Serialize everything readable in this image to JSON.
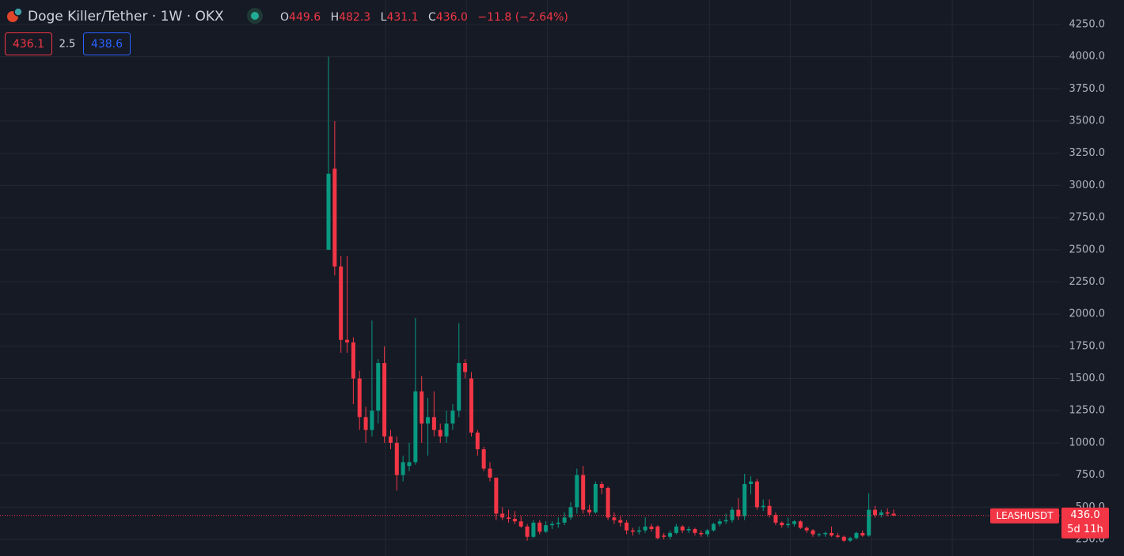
{
  "chart_data": {
    "type": "candlestick",
    "title": "Doge Killer/Tether · 1W · OKX",
    "header": {
      "o_label": "O",
      "o": "449.6",
      "h_label": "H",
      "h": "482.3",
      "l_label": "L",
      "l": "431.1",
      "c_label": "C",
      "c": "436.0",
      "change": "−11.8 (−2.64%)"
    },
    "boxes": {
      "bid": "436.1",
      "spread": "2.5",
      "ask": "438.6"
    },
    "price_tag": {
      "symbol": "LEASHUSDT",
      "price": "436.0",
      "countdown": "5d 11h"
    },
    "last_price": 436,
    "up_color": "#089981",
    "down_color": "#f23645",
    "open": [
      2500,
      3130,
      2370,
      1800,
      1780,
      1500,
      1200,
      1100,
      1250,
      1620,
      1050,
      1000,
      750,
      820,
      850,
      1400,
      1150,
      1200,
      1100,
      1050,
      1150,
      1250,
      1620,
      1500,
      1080,
      950,
      800,
      730,
      450,
      420,
      410,
      390,
      350,
      270,
      380,
      310,
      360,
      370,
      380,
      420,
      500,
      750,
      480,
      460,
      680,
      650,
      420,
      400,
      380,
      320,
      310,
      320,
      350,
      350,
      280,
      270,
      300,
      350,
      320,
      330,
      300,
      290,
      320,
      370,
      390,
      400,
      480,
      430,
      680,
      700,
      500,
      510,
      440,
      380,
      360,
      370,
      390,
      340,
      320,
      290,
      290,
      300,
      280,
      270,
      240,
      260,
      300,
      280,
      480,
      440,
      460,
      449.6
    ],
    "high": [
      4000,
      3500,
      2450,
      2450,
      1820,
      1560,
      1280,
      1950,
      1650,
      1750,
      1100,
      1050,
      900,
      1000,
      1970,
      1520,
      1350,
      1400,
      1150,
      1250,
      1300,
      1930,
      1650,
      1550,
      1100,
      970,
      850,
      730,
      500,
      480,
      470,
      430,
      370,
      400,
      400,
      390,
      390,
      420,
      460,
      540,
      800,
      820,
      520,
      700,
      700,
      660,
      460,
      430,
      400,
      340,
      350,
      420,
      370,
      360,
      300,
      320,
      370,
      360,
      350,
      340,
      320,
      330,
      380,
      410,
      450,
      500,
      570,
      760,
      740,
      720,
      560,
      560,
      460,
      390,
      420,
      400,
      400,
      350,
      330,
      300,
      310,
      350,
      300,
      280,
      270,
      310,
      320,
      610,
      510,
      480,
      490,
      482.3
    ],
    "low": [
      2500,
      2300,
      1700,
      1700,
      1300,
      1100,
      1000,
      1050,
      1150,
      1000,
      950,
      630,
      700,
      780,
      830,
      1000,
      900,
      1050,
      1000,
      1000,
      1100,
      1200,
      1500,
      1050,
      900,
      780,
      700,
      400,
      400,
      380,
      370,
      340,
      240,
      260,
      290,
      300,
      330,
      340,
      360,
      400,
      450,
      450,
      440,
      450,
      600,
      400,
      370,
      350,
      290,
      280,
      290,
      300,
      310,
      250,
      250,
      250,
      290,
      300,
      300,
      280,
      270,
      270,
      310,
      350,
      370,
      380,
      400,
      400,
      600,
      480,
      470,
      420,
      360,
      340,
      340,
      350,
      330,
      300,
      270,
      270,
      270,
      270,
      260,
      230,
      230,
      250,
      270,
      270,
      420,
      420,
      430,
      431.1
    ],
    "close": [
      3090,
      2370,
      1800,
      1780,
      1500,
      1200,
      1100,
      1250,
      1620,
      1050,
      1000,
      750,
      850,
      850,
      1400,
      1150,
      1200,
      1100,
      1050,
      1150,
      1250,
      1620,
      1550,
      1080,
      950,
      800,
      730,
      450,
      420,
      410,
      390,
      350,
      270,
      380,
      310,
      360,
      370,
      380,
      420,
      500,
      750,
      480,
      460,
      680,
      650,
      420,
      400,
      380,
      320,
      310,
      320,
      350,
      330,
      260,
      270,
      300,
      350,
      320,
      330,
      300,
      290,
      320,
      370,
      390,
      400,
      480,
      430,
      680,
      700,
      500,
      510,
      440,
      380,
      360,
      370,
      390,
      340,
      320,
      290,
      290,
      300,
      280,
      270,
      240,
      260,
      300,
      280,
      480,
      440,
      460,
      450,
      436
    ],
    "ylim": [
      121,
      4440
    ],
    "yticks": [
      {
        "value": 250,
        "label": "250.0"
      },
      {
        "value": 500,
        "label": "500.0"
      },
      {
        "value": 750,
        "label": "750.0"
      },
      {
        "value": 1000,
        "label": "1000.0"
      },
      {
        "value": 1250,
        "label": "1250.0"
      },
      {
        "value": 1500,
        "label": "1500.0"
      },
      {
        "value": 1750,
        "label": "1750.0"
      },
      {
        "value": 2000,
        "label": "2000.0"
      },
      {
        "value": 2250,
        "label": "2250.0"
      },
      {
        "value": 2500,
        "label": "2500.0"
      },
      {
        "value": 2750,
        "label": "2750.0"
      },
      {
        "value": 3000,
        "label": "3000.0"
      },
      {
        "value": 3250,
        "label": "3250.0"
      },
      {
        "value": 3500,
        "label": "3500.0"
      },
      {
        "value": 3750,
        "label": "3750.0"
      },
      {
        "value": 4000,
        "label": "4000.0"
      },
      {
        "value": 4250,
        "label": "4250.0"
      }
    ],
    "grid": true
  }
}
